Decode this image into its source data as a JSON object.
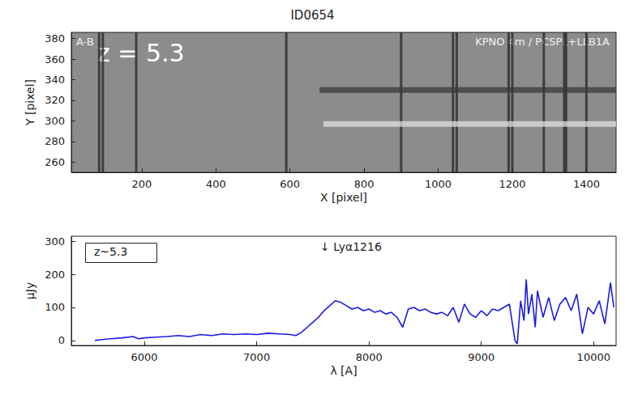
{
  "chart_data": [
    {
      "type": "image",
      "title": "ID0654",
      "annotations": [
        "A-B",
        "KPNO 4m / PCSPL+LLB1A",
        "z = 5.3"
      ],
      "x_label": "X [pixel]",
      "y_label": "Y [pixel]",
      "xlim": [
        10,
        1480
      ],
      "xticks": [
        200,
        400,
        600,
        800,
        1000,
        1200,
        1400
      ],
      "ylim": [
        250,
        386
      ],
      "yticks": [
        260,
        280,
        300,
        320,
        340,
        360,
        380
      ],
      "dark_columns": [
        85,
        95,
        185,
        590,
        900,
        1040,
        1050,
        1190,
        1200,
        1285,
        1340,
        1345,
        1400
      ],
      "bright_trace": {
        "y": 297,
        "x": [
          690,
          1480
        ]
      },
      "dark_trace": {
        "y": 330,
        "x": [
          680,
          1480
        ]
      },
      "grid": false
    },
    {
      "type": "line",
      "annotations": [
        "z~5.3",
        "↓ Lyα1216"
      ],
      "x_label": "λ [A]",
      "y_label": "μJy",
      "xlim": [
        5350,
        10200
      ],
      "xticks": [
        6000,
        7000,
        8000,
        9000,
        10000
      ],
      "ylim": [
        -15,
        315
      ],
      "yticks": [
        0,
        100,
        200,
        300
      ],
      "color": "#1a1ae6",
      "grid": false,
      "x": [
        5560,
        5600,
        5700,
        5800,
        5900,
        5950,
        6000,
        6100,
        6200,
        6300,
        6400,
        6500,
        6600,
        6700,
        6800,
        6900,
        7000,
        7100,
        7200,
        7300,
        7350,
        7400,
        7450,
        7500,
        7550,
        7600,
        7650,
        7700,
        7750,
        7800,
        7850,
        7900,
        7950,
        8000,
        8050,
        8100,
        8150,
        8200,
        8250,
        8300,
        8350,
        8400,
        8450,
        8500,
        8550,
        8600,
        8650,
        8700,
        8750,
        8800,
        8850,
        8900,
        8950,
        9000,
        9050,
        9100,
        9150,
        9200,
        9250,
        9300,
        9320,
        9350,
        9380,
        9400,
        9420,
        9450,
        9480,
        9500,
        9550,
        9600,
        9650,
        9700,
        9750,
        9800,
        9850,
        9900,
        9950,
        10000,
        10050,
        10100,
        10150,
        10180
      ],
      "values": [
        0,
        2,
        5,
        8,
        12,
        5,
        8,
        10,
        12,
        15,
        12,
        18,
        15,
        20,
        18,
        20,
        18,
        22,
        20,
        18,
        15,
        25,
        40,
        55,
        70,
        90,
        105,
        120,
        115,
        105,
        95,
        100,
        90,
        95,
        85,
        90,
        80,
        85,
        70,
        40,
        95,
        100,
        90,
        95,
        85,
        80,
        85,
        75,
        100,
        55,
        110,
        80,
        70,
        90,
        75,
        95,
        90,
        100,
        110,
        0,
        -10,
        120,
        60,
        185,
        80,
        140,
        40,
        150,
        70,
        130,
        60,
        110,
        130,
        90,
        140,
        20,
        100,
        80,
        120,
        50,
        175,
        100
      ]
    }
  ]
}
